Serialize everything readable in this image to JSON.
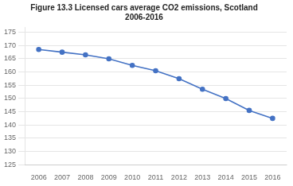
{
  "chart_data": {
    "type": "line",
    "title": "Figure 13.3 Licensed cars average CO2 emissions, Scotland\n2006-2016",
    "x": [
      2006,
      2007,
      2008,
      2009,
      2010,
      2011,
      2012,
      2013,
      2014,
      2015,
      2016
    ],
    "values": [
      168.5,
      167.5,
      166.5,
      165.0,
      162.5,
      160.5,
      157.5,
      153.5,
      150.0,
      145.5,
      142.5
    ],
    "color": "#4472C4",
    "marker": "circle",
    "xlim": [
      2005.4,
      2016.6
    ],
    "xticks": [
      2006,
      2007,
      2008,
      2009,
      2010,
      2011,
      2012,
      2013,
      2014,
      2015,
      2016
    ],
    "ylim": [
      125,
      177
    ],
    "yticks": [
      125,
      130,
      135,
      140,
      145,
      150,
      155,
      160,
      165,
      170,
      175
    ],
    "grid": "y"
  }
}
